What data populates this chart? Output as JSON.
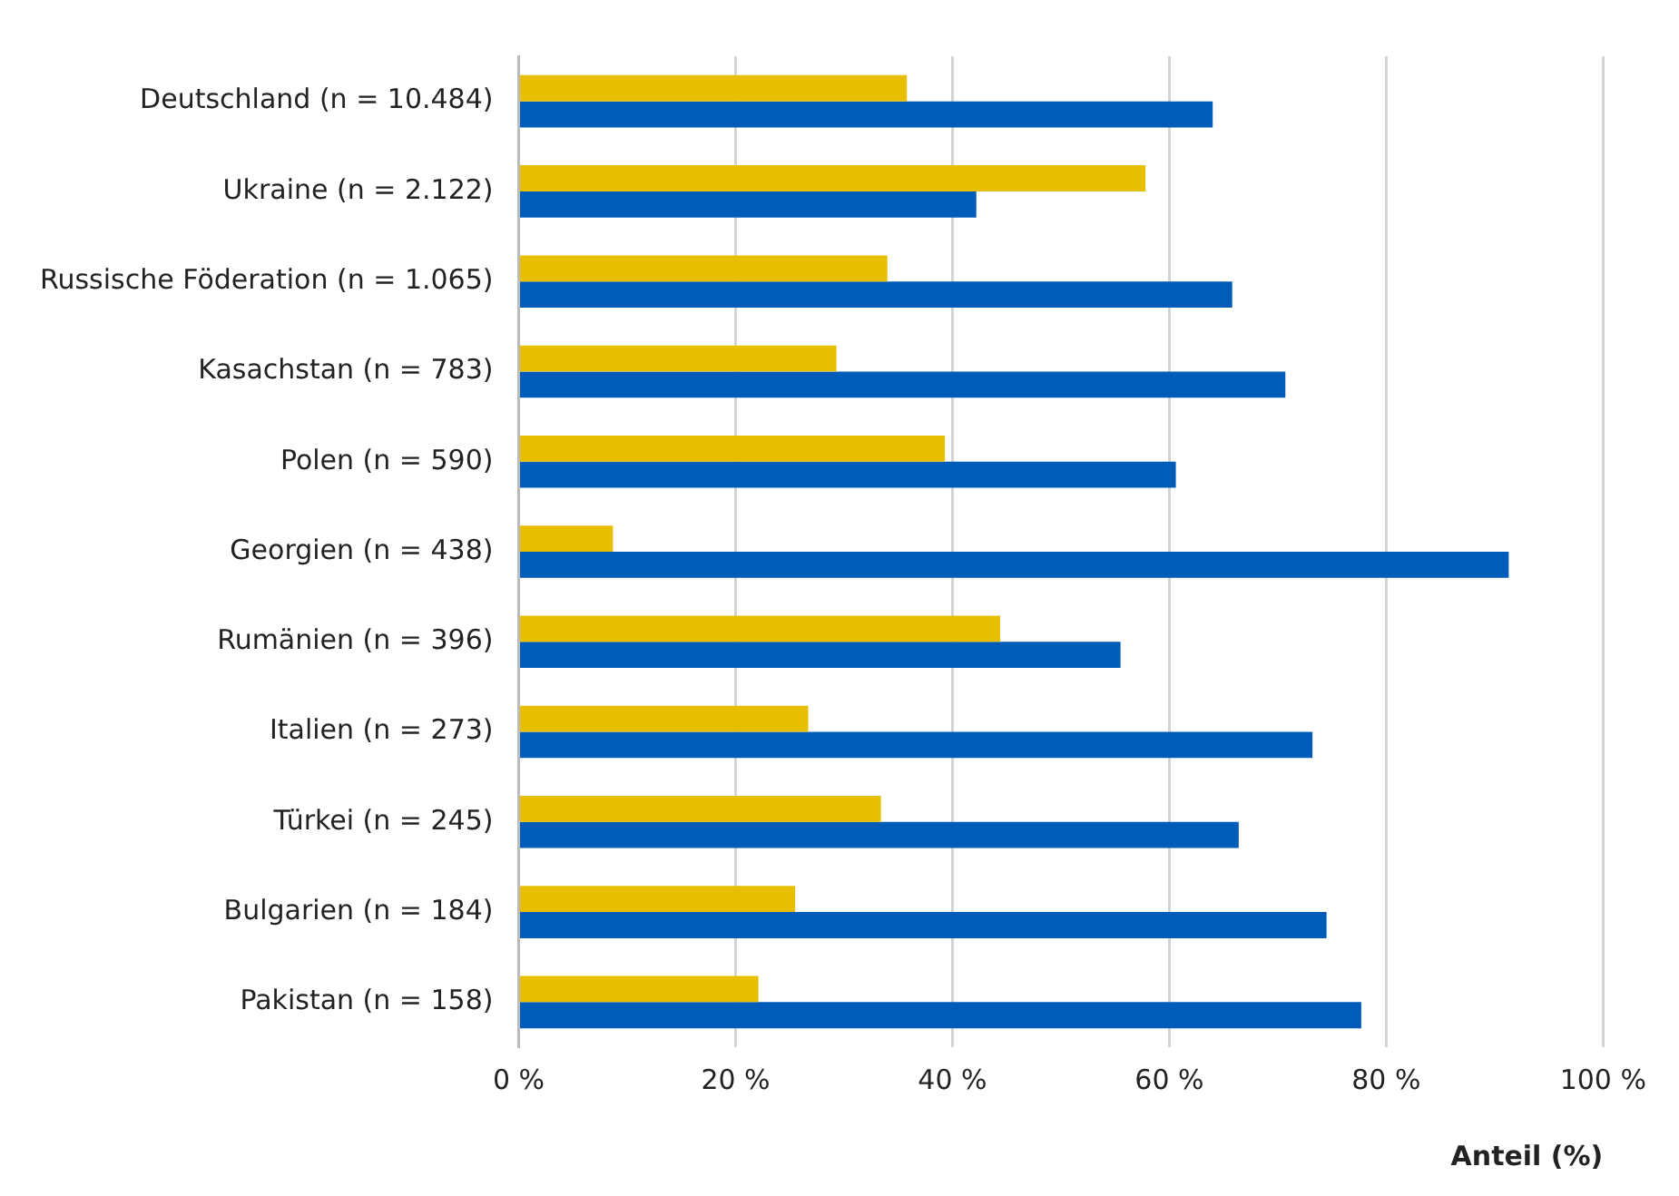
{
  "chart_data": {
    "type": "bar",
    "orientation": "horizontal",
    "xlabel": "Anteil (%)",
    "categories": [
      "Deutschland (n = 10.484)",
      "Ukraine (n = 2.122)",
      "Russische Föderation (n = 1.065)",
      "Kasachstan (n = 783)",
      "Polen (n = 590)",
      "Georgien (n = 438)",
      "Rumänien (n = 396)",
      "Italien (n = 273)",
      "Türkei (n = 245)",
      "Bulgarien (n = 184)",
      "Pakistan (n = 158)"
    ],
    "series": [
      {
        "color": "#e8bf00",
        "values": [
          35.8,
          57.8,
          34.0,
          29.3,
          39.3,
          8.7,
          44.4,
          26.7,
          33.4,
          25.5,
          22.1
        ]
      },
      {
        "color": "#005cb8",
        "values": [
          64.0,
          42.2,
          65.8,
          70.7,
          60.6,
          91.3,
          55.5,
          73.2,
          66.4,
          74.5,
          77.7
        ]
      }
    ],
    "xlim": [
      0,
      100
    ],
    "xticks": [
      {
        "value": 0,
        "label": "0 %"
      },
      {
        "value": 20,
        "label": "20 %"
      },
      {
        "value": 40,
        "label": "40 %"
      },
      {
        "value": 60,
        "label": "60 %"
      },
      {
        "value": 80,
        "label": "80 %"
      },
      {
        "value": 100,
        "label": "100 %"
      }
    ],
    "grid": "x",
    "legend": false
  }
}
